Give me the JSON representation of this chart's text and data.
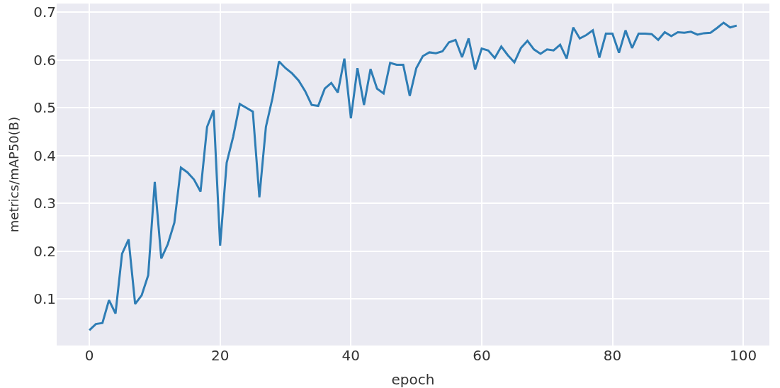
{
  "chart_data": {
    "type": "line",
    "xlabel": "epoch",
    "ylabel": "metrics/mAP50(B)",
    "x": [
      0,
      1,
      2,
      3,
      4,
      5,
      6,
      7,
      8,
      9,
      10,
      11,
      12,
      13,
      14,
      15,
      16,
      17,
      18,
      19,
      20,
      21,
      22,
      23,
      24,
      25,
      26,
      27,
      28,
      29,
      30,
      31,
      32,
      33,
      34,
      35,
      36,
      37,
      38,
      39,
      40,
      41,
      42,
      43,
      44,
      45,
      46,
      47,
      48,
      49,
      50,
      51,
      52,
      53,
      54,
      55,
      56,
      57,
      58,
      59,
      60,
      61,
      62,
      63,
      64,
      65,
      66,
      67,
      68,
      69,
      70,
      71,
      72,
      73,
      74,
      75,
      76,
      77,
      78,
      79,
      80,
      81,
      82,
      83,
      84,
      85,
      86,
      87,
      88,
      89,
      90,
      91,
      92,
      93,
      94,
      95,
      96,
      97,
      98,
      99
    ],
    "series": [
      {
        "color": "#2e7db5",
        "values": [
          0.035,
          0.048,
          0.05,
          0.098,
          0.07,
          0.195,
          0.225,
          0.09,
          0.108,
          0.15,
          0.345,
          0.185,
          0.215,
          0.26,
          0.375,
          0.365,
          0.35,
          0.325,
          0.46,
          0.495,
          0.212,
          0.385,
          0.44,
          0.508,
          0.5,
          0.492,
          0.313,
          0.46,
          0.52,
          0.597,
          0.583,
          0.572,
          0.557,
          0.535,
          0.506,
          0.504,
          0.54,
          0.552,
          0.532,
          0.603,
          0.478,
          0.583,
          0.506,
          0.581,
          0.54,
          0.53,
          0.594,
          0.59,
          0.59,
          0.525,
          0.583,
          0.608,
          0.616,
          0.614,
          0.618,
          0.637,
          0.642,
          0.606,
          0.645,
          0.58,
          0.624,
          0.62,
          0.604,
          0.628,
          0.61,
          0.595,
          0.625,
          0.64,
          0.622,
          0.613,
          0.622,
          0.62,
          0.632,
          0.603,
          0.668,
          0.645,
          0.652,
          0.662,
          0.605,
          0.655,
          0.655,
          0.615,
          0.662,
          0.625,
          0.655,
          0.655,
          0.654,
          0.642,
          0.658,
          0.65,
          0.658,
          0.657,
          0.659,
          0.653,
          0.656,
          0.657,
          0.667,
          0.678,
          0.668,
          0.672
        ]
      }
    ],
    "xlim": [
      -5,
      104
    ],
    "xticks": [
      0,
      20,
      40,
      60,
      80,
      100
    ],
    "ylim": [
      0.003,
      0.718
    ],
    "yticks": [
      0.1,
      0.2,
      0.3,
      0.4,
      0.5,
      0.6,
      0.7
    ],
    "grid": true,
    "line_style": "solid",
    "marker": "none"
  }
}
